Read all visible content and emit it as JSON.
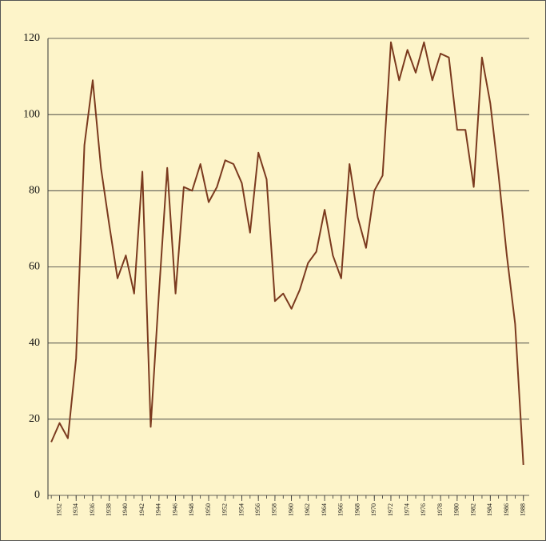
{
  "chart_data": {
    "type": "line",
    "x": [
      1931,
      1932,
      1933,
      1934,
      1935,
      1936,
      1937,
      1938,
      1939,
      1940,
      1941,
      1942,
      1943,
      1944,
      1945,
      1946,
      1947,
      1948,
      1949,
      1950,
      1951,
      1952,
      1953,
      1954,
      1955,
      1956,
      1957,
      1958,
      1959,
      1960,
      1961,
      1962,
      1963,
      1964,
      1965,
      1966,
      1967,
      1968,
      1969,
      1970,
      1971,
      1972,
      1973,
      1974,
      1975,
      1976,
      1977,
      1978,
      1979,
      1980,
      1981,
      1982,
      1983,
      1984,
      1985,
      1986,
      1987,
      1988
    ],
    "values": [
      14,
      19,
      15,
      36,
      92,
      109,
      86,
      71,
      57,
      63,
      53,
      85,
      18,
      53,
      86,
      53,
      81,
      80,
      87,
      77,
      81,
      88,
      87,
      82,
      69,
      90,
      83,
      51,
      53,
      49,
      54,
      61,
      64,
      75,
      63,
      57,
      87,
      73,
      65,
      80,
      84,
      119,
      109,
      117,
      111,
      119,
      109,
      116,
      115,
      96,
      96,
      81,
      115,
      103,
      84,
      63,
      45,
      8
    ],
    "color": "#7b3a1f",
    "xlim": [
      1930.6,
      1988.7
    ],
    "xticks": [
      1932,
      1934,
      1936,
      1938,
      1940,
      1942,
      1944,
      1946,
      1948,
      1950,
      1952,
      1954,
      1956,
      1958,
      1960,
      1962,
      1964,
      1966,
      1968,
      1970,
      1972,
      1974,
      1976,
      1978,
      1980,
      1982,
      1984,
      1986,
      1988
    ],
    "ylim": [
      0,
      120
    ],
    "yticks": [
      0,
      20,
      40,
      60,
      80,
      100,
      120
    ],
    "grid": true
  }
}
